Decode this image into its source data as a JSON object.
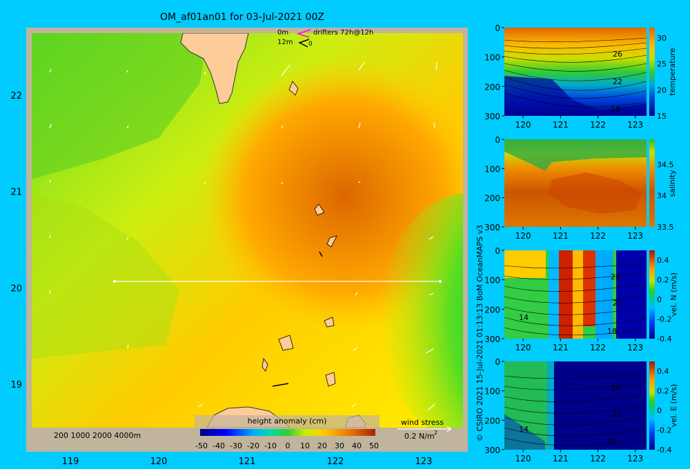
{
  "title": "OM_af01an01 for 03-Jul-2021 00Z",
  "credit": "© CSIRO 2021   15-Jul-2021 01:13:13 BoM OceanMAPS v3",
  "map_legend": {
    "drifters_0m": "0m",
    "drifters_12m": "12m",
    "drifters_label": "drifters 72h@12h",
    "drifter_12m_marker": "0",
    "depth_contours": "200  1000  2000  4000m",
    "colorbar_title": "height anomaly (cm)",
    "wind_title": "wind stress",
    "wind_scale": "0.2 N/m",
    "wind_scale_sup": "2"
  },
  "colors": {
    "background": "#00ccff",
    "land": "#fdcc99",
    "frame": "#c0b49c",
    "drifter_0m": "#ff00ff",
    "drifter_12m": "#000000",
    "section_line": "#ffffff"
  },
  "chart_data": [
    {
      "type": "heatmap",
      "name": "height anomaly map",
      "xlabel": "",
      "ylabel": "",
      "xlim": [
        118.5,
        123.5
      ],
      "ylim": [
        18.3,
        22.7
      ],
      "xticks": [
        119,
        120,
        121,
        122,
        123
      ],
      "yticks": [
        19,
        20,
        21,
        22
      ],
      "colorbar": {
        "label": "height anomaly (cm)",
        "range": [
          -50,
          50
        ],
        "ticks": [
          -50,
          -40,
          -30,
          -20,
          -10,
          0,
          10,
          20,
          30,
          40,
          50
        ]
      },
      "features": [
        {
          "kind": "eddy_max",
          "lon": 122.0,
          "lat": 21.05,
          "value": 36
        },
        {
          "kind": "eddy_min",
          "lon": 123.5,
          "lat": 19.6,
          "value": -10
        }
      ],
      "section_line": {
        "from": [
          119.5,
          20.0
        ],
        "to": [
          123.0,
          20.0
        ]
      }
    },
    {
      "type": "heatmap",
      "name": "temperature section",
      "colorbar": {
        "label": "temperature",
        "range": [
          15,
          32
        ],
        "ticks": [
          15,
          20,
          25,
          30
        ]
      },
      "xlim": [
        119.5,
        123.3
      ],
      "ylim": [
        300,
        0
      ],
      "xticks": [
        120,
        121,
        122,
        123
      ],
      "yticks": [
        0,
        100,
        200,
        300
      ],
      "contour_labels": [
        "26",
        "22",
        "18"
      ]
    },
    {
      "type": "heatmap",
      "name": "salinity section",
      "colorbar": {
        "label": "salinity",
        "range": [
          33.5,
          34.9
        ],
        "ticks": [
          33.5,
          34,
          34.5
        ]
      },
      "xlim": [
        119.5,
        123.3
      ],
      "ylim": [
        300,
        0
      ],
      "xticks": [
        120,
        121,
        122,
        123
      ],
      "yticks": [
        0,
        100,
        200,
        300
      ]
    },
    {
      "type": "heatmap",
      "name": "vel. N section",
      "colorbar": {
        "label": "vel. N (m/s)",
        "range": [
          -0.4,
          0.5
        ],
        "ticks": [
          -0.4,
          -0.2,
          0,
          0.2,
          0.4
        ]
      },
      "xlim": [
        119.5,
        123.3
      ],
      "ylim": [
        300,
        0
      ],
      "xticks": [
        120,
        121,
        122,
        123
      ],
      "yticks": [
        0,
        100,
        200,
        300
      ],
      "contour_labels": [
        "26",
        "22",
        "18",
        "14"
      ]
    },
    {
      "type": "heatmap",
      "name": "vel. E section",
      "colorbar": {
        "label": "vel. E (m/s)",
        "range": [
          -0.4,
          0.5
        ],
        "ticks": [
          -0.4,
          -0.2,
          0,
          0.2,
          0.4
        ]
      },
      "xlim": [
        119.5,
        123.3
      ],
      "ylim": [
        300,
        0
      ],
      "xticks": [
        120,
        121,
        122,
        123
      ],
      "yticks": [
        0,
        100,
        200,
        300
      ],
      "contour_labels": [
        "26",
        "22",
        "18",
        "14"
      ]
    }
  ]
}
